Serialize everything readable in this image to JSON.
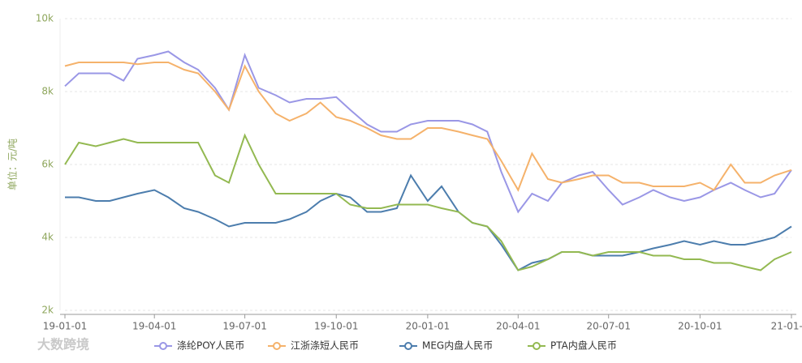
{
  "chart_data": {
    "type": "line",
    "y_label": "单位：元/吨",
    "watermark": "大数跨境",
    "x": [
      "2019-01-01",
      "2019-01-15",
      "2019-02-01",
      "2019-02-15",
      "2019-03-01",
      "2019-03-15",
      "2019-04-01",
      "2019-04-15",
      "2019-05-01",
      "2019-05-15",
      "2019-06-01",
      "2019-06-15",
      "2019-07-01",
      "2019-07-15",
      "2019-08-01",
      "2019-08-15",
      "2019-09-01",
      "2019-09-15",
      "2019-10-01",
      "2019-10-15",
      "2019-11-01",
      "2019-11-15",
      "2019-12-01",
      "2019-12-15",
      "2020-01-01",
      "2020-01-15",
      "2020-02-01",
      "2020-02-15",
      "2020-03-01",
      "2020-03-15",
      "2020-04-01",
      "2020-04-15",
      "2020-05-01",
      "2020-05-15",
      "2020-06-01",
      "2020-06-15",
      "2020-07-01",
      "2020-07-15",
      "2020-08-01",
      "2020-08-15",
      "2020-09-01",
      "2020-09-15",
      "2020-10-01",
      "2020-10-15",
      "2020-11-01",
      "2020-11-15",
      "2020-12-01",
      "2020-12-15",
      "2021-01-01"
    ],
    "xlim": [
      "2019-01-01",
      "2021-01-01"
    ],
    "xticks": [
      {
        "value": "2019-01-01",
        "label": "19-01-01"
      },
      {
        "value": "2019-04-01",
        "label": "19-04-01"
      },
      {
        "value": "2019-07-01",
        "label": "19-07-01"
      },
      {
        "value": "2019-10-01",
        "label": "19-10-01"
      },
      {
        "value": "2020-01-01",
        "label": "20-01-01"
      },
      {
        "value": "2020-04-01",
        "label": "20-04-01"
      },
      {
        "value": "2020-07-01",
        "label": "20-07-01"
      },
      {
        "value": "2020-10-01",
        "label": "20-10-01"
      },
      {
        "value": "2021-01-01",
        "label": "21-01-..."
      }
    ],
    "ylim": [
      2000,
      10000
    ],
    "yticks": [
      {
        "value": 2000,
        "label": "2k"
      },
      {
        "value": 4000,
        "label": "4k"
      },
      {
        "value": 6000,
        "label": "6k"
      },
      {
        "value": 8000,
        "label": "8k"
      },
      {
        "value": 10000,
        "label": "10k"
      }
    ],
    "grid": true,
    "legend": "bottom",
    "series": [
      {
        "name": "涤纶POY人民币",
        "color": "#9a97e6",
        "values": [
          8150,
          8500,
          8500,
          8500,
          8300,
          8900,
          9000,
          9100,
          8800,
          8600,
          8100,
          7500,
          9000,
          8100,
          7900,
          7700,
          7800,
          7800,
          7850,
          7500,
          7100,
          6900,
          6900,
          7100,
          7200,
          7200,
          7200,
          7100,
          6900,
          5800,
          4700,
          5200,
          5000,
          5500,
          5700,
          5800,
          5300,
          4900,
          5100,
          5300,
          5100,
          5000,
          5100,
          5300,
          5500,
          5300,
          5100,
          5200,
          5850
        ]
      },
      {
        "name": "江浙涤短人民币",
        "color": "#f5b26b",
        "values": [
          8700,
          8800,
          8800,
          8800,
          8800,
          8750,
          8800,
          8800,
          8600,
          8500,
          8000,
          7500,
          8700,
          8000,
          7400,
          7200,
          7400,
          7700,
          7300,
          7200,
          7000,
          6800,
          6700,
          6700,
          7000,
          7000,
          6900,
          6800,
          6700,
          6100,
          5300,
          6300,
          5600,
          5500,
          5600,
          5700,
          5700,
          5500,
          5500,
          5400,
          5400,
          5400,
          5500,
          5300,
          6000,
          5500,
          5500,
          5700,
          5850
        ]
      },
      {
        "name": "MEG内盘人民币",
        "color": "#4c7dad",
        "values": [
          5100,
          5100,
          5000,
          5000,
          5100,
          5200,
          5300,
          5100,
          4800,
          4700,
          4500,
          4300,
          4400,
          4400,
          4400,
          4500,
          4700,
          5000,
          5200,
          5100,
          4700,
          4700,
          4800,
          5700,
          5000,
          5400,
          4700,
          4400,
          4300,
          3800,
          3100,
          3300,
          3400,
          3600,
          3600,
          3500,
          3500,
          3500,
          3600,
          3700,
          3800,
          3900,
          3800,
          3900,
          3800,
          3800,
          3900,
          4000,
          4300
        ]
      },
      {
        "name": "PTA内盘人民币",
        "color": "#93b951",
        "values": [
          6000,
          6600,
          6500,
          6600,
          6700,
          6600,
          6600,
          6600,
          6600,
          6600,
          5700,
          5500,
          6800,
          6000,
          5200,
          5200,
          5200,
          5200,
          5200,
          4900,
          4800,
          4800,
          4900,
          4900,
          4900,
          4800,
          4700,
          4400,
          4300,
          3900,
          3100,
          3200,
          3400,
          3600,
          3600,
          3500,
          3600,
          3600,
          3600,
          3500,
          3500,
          3400,
          3400,
          3300,
          3300,
          3200,
          3100,
          3400,
          3600
        ]
      }
    ]
  }
}
